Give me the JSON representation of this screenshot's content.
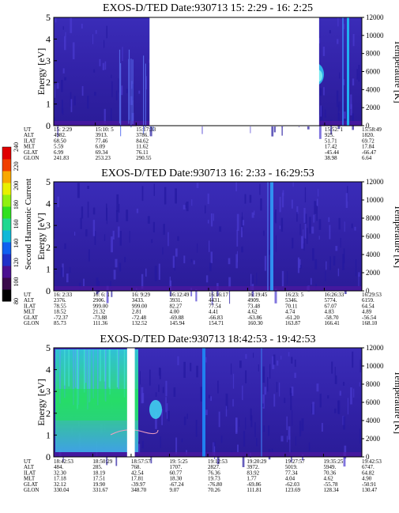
{
  "figure": {
    "instrument": "EXOS-D/TED",
    "left_axis_label": "Energy [eV]",
    "right_axis_label": "Temperature [K]",
    "y_ticks": [
      "0",
      "1",
      "2",
      "3",
      "4",
      "5"
    ],
    "right_ticks": [
      "0",
      "2000",
      "4000",
      "6000",
      "8000",
      "10000",
      "12000"
    ],
    "colorbar": {
      "label": "Second Harmonic Current",
      "ticks": [
        "80",
        "100",
        "120",
        "140",
        "160",
        "180",
        "200",
        "220",
        "240"
      ],
      "colors": [
        "#000000",
        "#3a0a4a",
        "#4a1090",
        "#2030c8",
        "#1060f0",
        "#10b8d8",
        "#20d890",
        "#30e020",
        "#90f010",
        "#e8f000",
        "#f8a800",
        "#f04000",
        "#e00000"
      ]
    }
  },
  "chart_data": [
    {
      "type": "heatmap",
      "title": "EXOS-D/TED   Date:930713  15: 2:29 - 16: 2:25",
      "ylabel": "Energy [eV]",
      "ylim": [
        0,
        5
      ],
      "y2label": "Temperature [K]",
      "y2lim": [
        0,
        12000
      ],
      "orbit_table": {
        "row_labels": [
          "UT",
          "ALT",
          "ILAT",
          "MLT",
          "GLAT",
          "GLON"
        ],
        "columns": [
          [
            "15: 2:29",
            "4982.",
            "68.50",
            "5.59",
            "6.99",
            "241.83"
          ],
          [
            "15:10: 5",
            "3913.",
            "77.46",
            "6.09",
            "69.34",
            "253.23"
          ],
          [
            "15:17:33",
            "3786.",
            "84.62",
            "11.62",
            "76.11",
            "290.55"
          ],
          [
            "15:52: 1",
            "925.",
            "51.71",
            "17.42",
            "-45.44",
            "38.98"
          ],
          [
            "15:58:49",
            "1820.",
            "69.72",
            "17.84",
            "-66.47",
            "6.64"
          ]
        ]
      },
      "data_gaps": [
        [
          "15:20:00",
          "15:51:00"
        ]
      ]
    },
    {
      "type": "heatmap",
      "title": "EXOS-D/TED   Date:930713  16: 2:33 - 16:29:53",
      "ylabel": "Energy [eV]",
      "ylim": [
        0,
        5
      ],
      "y2label": "Temperature [K]",
      "y2lim": [
        0,
        12000
      ],
      "orbit_table": {
        "row_labels": [
          "UT",
          "ALT",
          "ILAT",
          "MLT",
          "GLAT",
          "GLON"
        ],
        "columns": [
          [
            "16: 2:33",
            "2376.",
            "78.55",
            "18.52",
            "-72.37",
            "85.73"
          ],
          [
            "16: 6: 1",
            "2906.",
            "999.00",
            "21.32",
            "-73.88",
            "111.36"
          ],
          [
            "16: 9:29",
            "3433.",
            "999.00",
            "2.81",
            "-72.48",
            "132.52"
          ],
          [
            "16:12:49",
            "3931.",
            "82.27",
            "4.00",
            "-69.88",
            "145.94"
          ],
          [
            "16:16:17",
            "4431.",
            "77.54",
            "4.41",
            "-66.83",
            "154.71"
          ],
          [
            "16:19:45",
            "4909.",
            "73.48",
            "4.62",
            "-63.86",
            "160.30"
          ],
          [
            "16:23: 5",
            "5346.",
            "70.11",
            "4.74",
            "-61.20",
            "163.87"
          ],
          [
            "16:26:33",
            "5774.",
            "67.07",
            "4.83",
            "-58.70",
            "166.41"
          ],
          [
            "16:29:53",
            "6159.",
            "64.54",
            "4.89",
            "-56.54",
            "168.10"
          ]
        ]
      },
      "data_gaps": []
    },
    {
      "type": "heatmap",
      "title": "EXOS-D/TED   Date:930713  18:42:53 - 19:42:53",
      "ylabel": "Energy [eV]",
      "ylim": [
        0,
        5
      ],
      "y2label": "Temperature [K]",
      "y2lim": [
        0,
        12000
      ],
      "orbit_table": {
        "row_labels": [
          "UT",
          "ALT",
          "ILAT",
          "MLT",
          "GLAT",
          "GLON"
        ],
        "columns": [
          [
            "18:42:53",
            "484.",
            "32.30",
            "17.18",
            "32.12",
            "330.04"
          ],
          [
            "18:50:29",
            "285.",
            "18.19",
            "17.51",
            "19.90",
            "331.67"
          ],
          [
            "18:57:57",
            "768.",
            "42.54",
            "17.81",
            "-39.97",
            "348.70"
          ],
          [
            "19: 5:25",
            "1707.",
            "60.77",
            "18.30",
            "-67.24",
            "9.07"
          ],
          [
            "19:12:53",
            "2827.",
            "76.36",
            "19.73",
            "-76.80",
            "70.26"
          ],
          [
            "19:20:29",
            "3972.",
            "83.92",
            "1.77",
            "-69.86",
            "111.81"
          ],
          [
            "19:27:57",
            "5019.",
            "77.34",
            "4.04",
            "-62.03",
            "123.69"
          ],
          [
            "19:35:25",
            "5949.",
            "70.36",
            "4.62",
            "-55.78",
            "128.34"
          ],
          [
            "19:42:53",
            "6747.",
            "64.82",
            "4.90",
            "-50.91",
            "130.47"
          ]
        ]
      },
      "data_gaps": [
        [
          "18:57:10",
          "18:58:40"
        ]
      ]
    }
  ]
}
